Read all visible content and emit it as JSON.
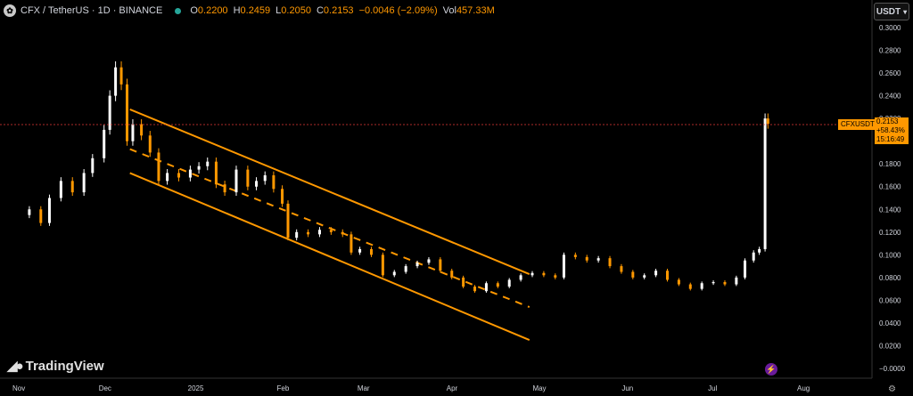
{
  "legend": {
    "symbol_icon": "cfx-coin-icon",
    "title": "CFX / TetherUS · 1D · BINANCE",
    "open_label": "O",
    "open": "0.2200",
    "high_label": "H",
    "high": "0.2459",
    "low_label": "L",
    "low": "0.2050",
    "close_label": "C",
    "close": "0.2153",
    "change": "−0.0046 (−2.09%)",
    "volume_label": "Vol",
    "volume": "457.33M",
    "status_color": "#26a69a"
  },
  "currency_button": "USDT",
  "price_label": {
    "symbol": "CFXUSDT",
    "price": "0.2153",
    "change_pct": "+58.43%",
    "countdown": "15:16:49"
  },
  "logo_text": "TradingView",
  "icons": {
    "flash": "flash-icon",
    "settings": "gear-icon",
    "logo": "tradingview-logo-icon"
  },
  "colors": {
    "up": "#ffffff",
    "down": "#ff9800",
    "channel": "#ff9800",
    "axis_text": "#d1d4dc",
    "price_line": "#e53935"
  },
  "chart_data": {
    "type": "candlestick",
    "y_axis_labels": [
      "0.3000",
      "0.2800",
      "0.2600",
      "0.2400",
      "0.2200",
      "0.2000",
      "0.1800",
      "0.1600",
      "0.1400",
      "0.1200",
      "0.1000",
      "0.0800",
      "0.0600",
      "0.0400",
      "0.0200",
      "−0.0000"
    ],
    "x_axis_labels": [
      "Nov",
      "Dec",
      "2025",
      "Feb",
      "Mar",
      "Apr",
      "May",
      "Jun",
      "Jul",
      "Aug"
    ],
    "ylim": [
      0,
      0.3
    ],
    "last_price": 0.2153,
    "close_series": [
      [
        "2024-11-01",
        0.135
      ],
      [
        "2024-11-05",
        0.14
      ],
      [
        "2024-11-09",
        0.128
      ],
      [
        "2024-11-12",
        0.15
      ],
      [
        "2024-11-16",
        0.165
      ],
      [
        "2024-11-20",
        0.155
      ],
      [
        "2024-11-24",
        0.172
      ],
      [
        "2024-11-27",
        0.185
      ],
      [
        "2024-12-01",
        0.21
      ],
      [
        "2024-12-03",
        0.24
      ],
      [
        "2024-12-05",
        0.265
      ],
      [
        "2024-12-07",
        0.25
      ],
      [
        "2024-12-09",
        0.2
      ],
      [
        "2024-12-11",
        0.215
      ],
      [
        "2024-12-14",
        0.205
      ],
      [
        "2024-12-17",
        0.19
      ],
      [
        "2024-12-20",
        0.165
      ],
      [
        "2024-12-23",
        0.172
      ],
      [
        "2024-12-27",
        0.168
      ],
      [
        "2024-12-31",
        0.175
      ],
      [
        "2025-01-03",
        0.178
      ],
      [
        "2025-01-06",
        0.182
      ],
      [
        "2025-01-09",
        0.162
      ],
      [
        "2025-01-12",
        0.155
      ],
      [
        "2025-01-16",
        0.175
      ],
      [
        "2025-01-20",
        0.16
      ],
      [
        "2025-01-23",
        0.165
      ],
      [
        "2025-01-26",
        0.17
      ],
      [
        "2025-01-29",
        0.158
      ],
      [
        "2025-02-01",
        0.145
      ],
      [
        "2025-02-03",
        0.115
      ],
      [
        "2025-02-06",
        0.12
      ],
      [
        "2025-02-10",
        0.118
      ],
      [
        "2025-02-14",
        0.122
      ],
      [
        "2025-02-18",
        0.12
      ],
      [
        "2025-02-22",
        0.118
      ],
      [
        "2025-02-25",
        0.102
      ],
      [
        "2025-02-28",
        0.105
      ],
      [
        "2025-03-04",
        0.1
      ],
      [
        "2025-03-08",
        0.082
      ],
      [
        "2025-03-12",
        0.085
      ],
      [
        "2025-03-16",
        0.09
      ],
      [
        "2025-03-20",
        0.093
      ],
      [
        "2025-03-24",
        0.096
      ],
      [
        "2025-03-28",
        0.086
      ],
      [
        "2025-04-01",
        0.08
      ],
      [
        "2025-04-05",
        0.072
      ],
      [
        "2025-04-09",
        0.068
      ],
      [
        "2025-04-13",
        0.075
      ],
      [
        "2025-04-17",
        0.072
      ],
      [
        "2025-04-21",
        0.078
      ],
      [
        "2025-04-25",
        0.082
      ],
      [
        "2025-04-29",
        0.084
      ],
      [
        "2025-05-03",
        0.082
      ],
      [
        "2025-05-07",
        0.08
      ],
      [
        "2025-05-10",
        0.1
      ],
      [
        "2025-05-14",
        0.098
      ],
      [
        "2025-05-18",
        0.095
      ],
      [
        "2025-05-22",
        0.097
      ],
      [
        "2025-05-26",
        0.09
      ],
      [
        "2025-05-30",
        0.085
      ],
      [
        "2025-06-03",
        0.08
      ],
      [
        "2025-06-07",
        0.082
      ],
      [
        "2025-06-11",
        0.086
      ],
      [
        "2025-06-15",
        0.078
      ],
      [
        "2025-06-19",
        0.074
      ],
      [
        "2025-06-23",
        0.07
      ],
      [
        "2025-06-27",
        0.075
      ],
      [
        "2025-07-01",
        0.076
      ],
      [
        "2025-07-05",
        0.074
      ],
      [
        "2025-07-09",
        0.08
      ],
      [
        "2025-07-12",
        0.095
      ],
      [
        "2025-07-15",
        0.102
      ],
      [
        "2025-07-17",
        0.105
      ],
      [
        "2025-07-19",
        0.22
      ],
      [
        "2025-07-20",
        0.2153
      ]
    ],
    "channel": {
      "upper": [
        [
          "2024-12-10",
          0.228
        ],
        [
          "2025-04-28",
          0.083
        ]
      ],
      "middle": [
        [
          "2024-12-10",
          0.193
        ],
        [
          "2025-04-28",
          0.054
        ]
      ],
      "lower": [
        [
          "2024-12-10",
          0.172
        ],
        [
          "2025-04-28",
          0.025
        ]
      ]
    }
  }
}
